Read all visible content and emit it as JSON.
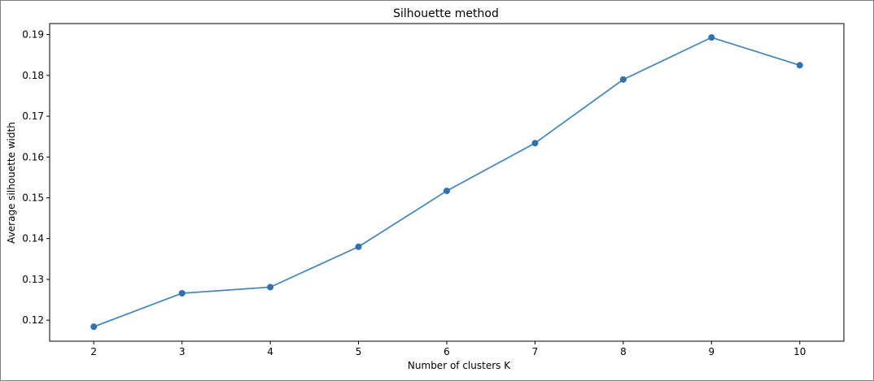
{
  "chart_data": {
    "type": "line",
    "title": "Silhouette method",
    "xlabel": "Number of clusters K",
    "ylabel": "Average silhouette width",
    "x": [
      2,
      3,
      4,
      5,
      6,
      7,
      8,
      9,
      10
    ],
    "series": [
      {
        "values": [
          0.1184,
          0.1266,
          0.1281,
          0.138,
          0.1517,
          0.1634,
          0.179,
          0.1893,
          0.1825
        ]
      }
    ],
    "xticks": [
      "2",
      "3",
      "4",
      "5",
      "6",
      "7",
      "8",
      "9",
      "10"
    ],
    "yticks": [
      "0.12",
      "0.13",
      "0.14",
      "0.15",
      "0.16",
      "0.17",
      "0.18",
      "0.19"
    ],
    "xlim": [
      1.5,
      10.5
    ],
    "ylim": [
      0.11485,
      0.19271
    ],
    "grid": false,
    "line_color": "#3f84c1",
    "marker_color": "#2f72b0"
  }
}
